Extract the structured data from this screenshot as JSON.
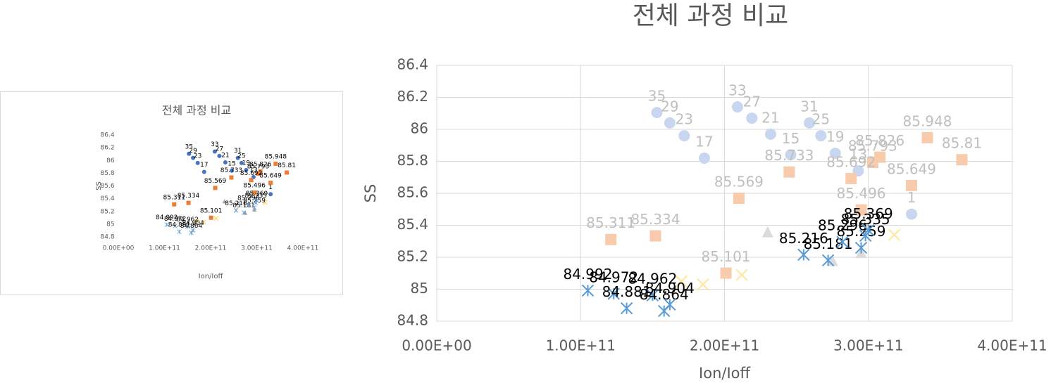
{
  "chart_data": [
    {
      "type": "scatter",
      "title": "전체 과정 비교",
      "x_label": "Ion/Ioff",
      "y_label": "SS",
      "xlim": [
        0,
        400000000000.0
      ],
      "ylim": [
        84.8,
        86.4
      ],
      "grid": false,
      "xticks": [
        {
          "value": 0,
          "label": "0.00E+00"
        },
        {
          "value": 100000000000.0,
          "label": "1.00E+11"
        },
        {
          "value": 200000000000.0,
          "label": "2.00E+11"
        },
        {
          "value": 300000000000.0,
          "label": "3.00E+11"
        },
        {
          "value": 400000000000.0,
          "label": "4.00E+11"
        }
      ],
      "yticks": [
        84.8,
        85,
        85.2,
        85.4,
        85.6,
        85.8,
        86,
        86.2,
        86.4
      ],
      "series": [
        {
          "marker": "circle",
          "color": "#4472c4",
          "label_color": "#000000",
          "x": [
            153000000000.0,
            162000000000.0,
            172000000000.0,
            186000000000.0,
            209000000000.0,
            219000000000.0,
            232000000000.0,
            246000000000.0,
            259000000000.0,
            267000000000.0,
            277000000000.0,
            293000000000.0,
            330000000000.0
          ],
          "values": [
            86.105,
            86.04,
            85.96,
            85.82,
            86.14,
            86.07,
            85.97,
            85.84,
            86.04,
            85.96,
            85.85,
            85.74,
            85.47
          ],
          "labels": [
            35,
            29,
            23,
            17,
            33,
            27,
            21,
            15,
            31,
            25,
            19,
            13,
            1
          ]
        },
        {
          "marker": "square",
          "color": "#ed7d31",
          "label_color": "#000000",
          "data_labels": true,
          "x": [
            121000000000.0,
            152000000000.0,
            201000000000.0,
            341000000000.0,
            365000000000.0,
            308000000000.0,
            330000000000.0,
            303000000000.0,
            288000000000.0,
            295000000000.0,
            245000000000.0,
            210000000000.0
          ],
          "values": [
            85.311,
            85.334,
            85.101,
            85.948,
            85.81,
            85.826,
            85.649,
            85.793,
            85.692,
            85.496,
            85.733,
            85.569
          ]
        },
        {
          "marker": "triangle",
          "color": "#a5a5a5",
          "x": [
            230000000000.0,
            275000000000.0,
            295000000000.0
          ],
          "values": [
            85.36,
            85.18,
            85.23
          ]
        },
        {
          "marker": "x",
          "color": "#ffc000",
          "x": [
            170000000000.0,
            185000000000.0,
            212000000000.0,
            318000000000.0
          ],
          "values": [
            85.05,
            85.03,
            85.09,
            85.34
          ]
        },
        {
          "marker": "asterisk",
          "color": "#5b9bd5",
          "label_color": "#000000",
          "data_labels": true,
          "x": [
            105000000000.0,
            123000000000.0,
            132000000000.0,
            150000000000.0,
            158000000000.0,
            162000000000.0,
            255000000000.0,
            272000000000.0,
            295000000000.0,
            282000000000.0,
            300000000000.0,
            298000000000.0
          ],
          "values": [
            84.992,
            84.972,
            84.881,
            84.962,
            84.864,
            84.904,
            85.216,
            85.181,
            85.259,
            85.296,
            85.369,
            85.335
          ]
        }
      ]
    },
    {
      "type": "scatter",
      "title": "전체 과정 비교",
      "x_label": "Ion/Ioff",
      "y_label": "SS",
      "xlim": [
        0,
        400000000000.0
      ],
      "ylim": [
        84.8,
        86.4
      ],
      "grid": true,
      "xticks": [
        {
          "value": 0,
          "label": "0.00E+00"
        },
        {
          "value": 100000000000.0,
          "label": "1.00E+11"
        },
        {
          "value": 200000000000.0,
          "label": "2.00E+11"
        },
        {
          "value": 300000000000.0,
          "label": "3.00E+11"
        },
        {
          "value": 400000000000.0,
          "label": "4.00E+11"
        }
      ],
      "yticks": [
        84.8,
        85,
        85.2,
        85.4,
        85.6,
        85.8,
        86,
        86.2,
        86.4
      ],
      "series": [
        {
          "marker": "circle",
          "color": "#c9d6ef",
          "label_color": "#bfbfbf",
          "x": [
            153000000000.0,
            162000000000.0,
            172000000000.0,
            186000000000.0,
            209000000000.0,
            219000000000.0,
            232000000000.0,
            246000000000.0,
            259000000000.0,
            267000000000.0,
            277000000000.0,
            293000000000.0,
            330000000000.0
          ],
          "values": [
            86.105,
            86.04,
            85.96,
            85.82,
            86.14,
            86.07,
            85.97,
            85.84,
            86.04,
            85.96,
            85.85,
            85.74,
            85.47
          ],
          "labels": [
            35,
            29,
            23,
            17,
            33,
            27,
            21,
            15,
            31,
            25,
            19,
            13,
            1
          ]
        },
        {
          "marker": "square",
          "color": "#f8cbad",
          "label_color": "#bfbfbf",
          "data_labels": true,
          "x": [
            121000000000.0,
            152000000000.0,
            201000000000.0,
            341000000000.0,
            365000000000.0,
            308000000000.0,
            330000000000.0,
            303000000000.0,
            288000000000.0,
            295000000000.0,
            245000000000.0,
            210000000000.0
          ],
          "values": [
            85.311,
            85.334,
            85.101,
            85.948,
            85.81,
            85.826,
            85.649,
            85.793,
            85.692,
            85.496,
            85.733,
            85.569
          ]
        },
        {
          "marker": "triangle",
          "color": "#dbdbdb",
          "x": [
            230000000000.0,
            275000000000.0,
            295000000000.0
          ],
          "values": [
            85.36,
            85.18,
            85.23
          ]
        },
        {
          "marker": "x",
          "color": "#ffe699",
          "x": [
            170000000000.0,
            185000000000.0,
            212000000000.0,
            318000000000.0
          ],
          "values": [
            85.05,
            85.03,
            85.09,
            85.34
          ]
        },
        {
          "marker": "asterisk",
          "color": "#5b9bd5",
          "label_color": "#000000",
          "data_labels": true,
          "x": [
            105000000000.0,
            123000000000.0,
            132000000000.0,
            150000000000.0,
            158000000000.0,
            162000000000.0,
            255000000000.0,
            272000000000.0,
            295000000000.0,
            282000000000.0,
            300000000000.0,
            298000000000.0
          ],
          "values": [
            84.992,
            84.972,
            84.881,
            84.962,
            84.864,
            84.904,
            85.216,
            85.181,
            85.259,
            85.296,
            85.369,
            85.335
          ]
        }
      ]
    }
  ]
}
